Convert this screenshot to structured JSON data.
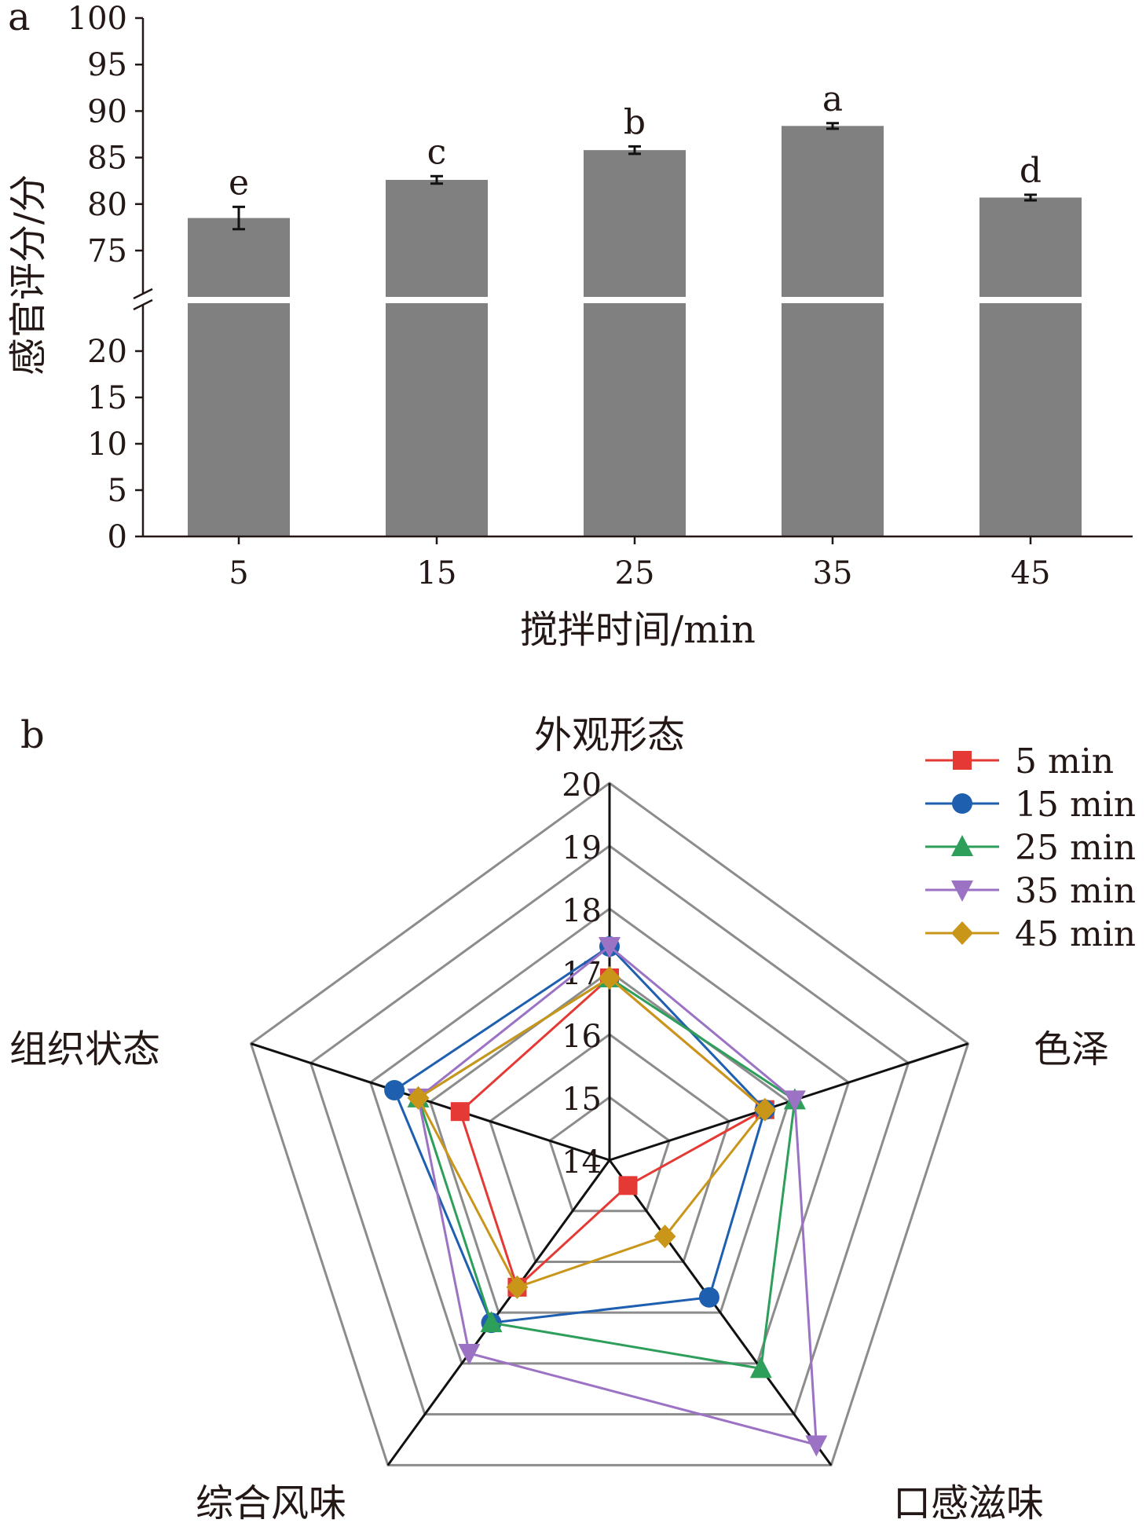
{
  "chart_data": [
    {
      "panel_label": "a",
      "type": "bar",
      "categories": [
        "5",
        "15",
        "25",
        "35",
        "45"
      ],
      "values": [
        78.5,
        82.6,
        85.8,
        88.4,
        80.7
      ],
      "errors": [
        1.2,
        0.4,
        0.4,
        0.3,
        0.3
      ],
      "significance": [
        "e",
        "c",
        "b",
        "a",
        "d"
      ],
      "xlabel": "搅拌时间/min",
      "ylabel": "感官评分/分",
      "ylim": [
        0,
        100
      ],
      "axis_break": [
        25,
        70
      ],
      "yticks_lower": [
        "0",
        "5",
        "10",
        "15",
        "20"
      ],
      "yticks_upper": [
        "75",
        "80",
        "85",
        "90",
        "95",
        "100"
      ],
      "bar_color": "#808080"
    },
    {
      "panel_label": "b",
      "type": "radar",
      "axes": [
        "外观形态",
        "色泽",
        "口感滋味",
        "综合风味",
        "组织状态"
      ],
      "range": [
        14,
        20
      ],
      "ticks": [
        "14",
        "15",
        "16",
        "17",
        "18",
        "19",
        "20"
      ],
      "series": [
        {
          "name": "5 min",
          "color": "#e53935",
          "marker": "square",
          "values": [
            16.9,
            16.6,
            14.5,
            16.5,
            16.5
          ]
        },
        {
          "name": "15 min",
          "color": "#1f5fb0",
          "marker": "circle",
          "values": [
            17.4,
            16.6,
            16.7,
            17.2,
            17.6
          ]
        },
        {
          "name": "25 min",
          "color": "#2e9e5b",
          "marker": "triangle-up",
          "values": [
            16.9,
            17.1,
            18.1,
            17.2,
            17.2
          ]
        },
        {
          "name": "35 min",
          "color": "#9b72c4",
          "marker": "triangle-down",
          "values": [
            17.4,
            17.1,
            19.6,
            17.8,
            17.2
          ]
        },
        {
          "name": "45 min",
          "color": "#c9961a",
          "marker": "diamond",
          "values": [
            16.9,
            16.6,
            15.5,
            16.5,
            17.2
          ]
        }
      ]
    }
  ]
}
